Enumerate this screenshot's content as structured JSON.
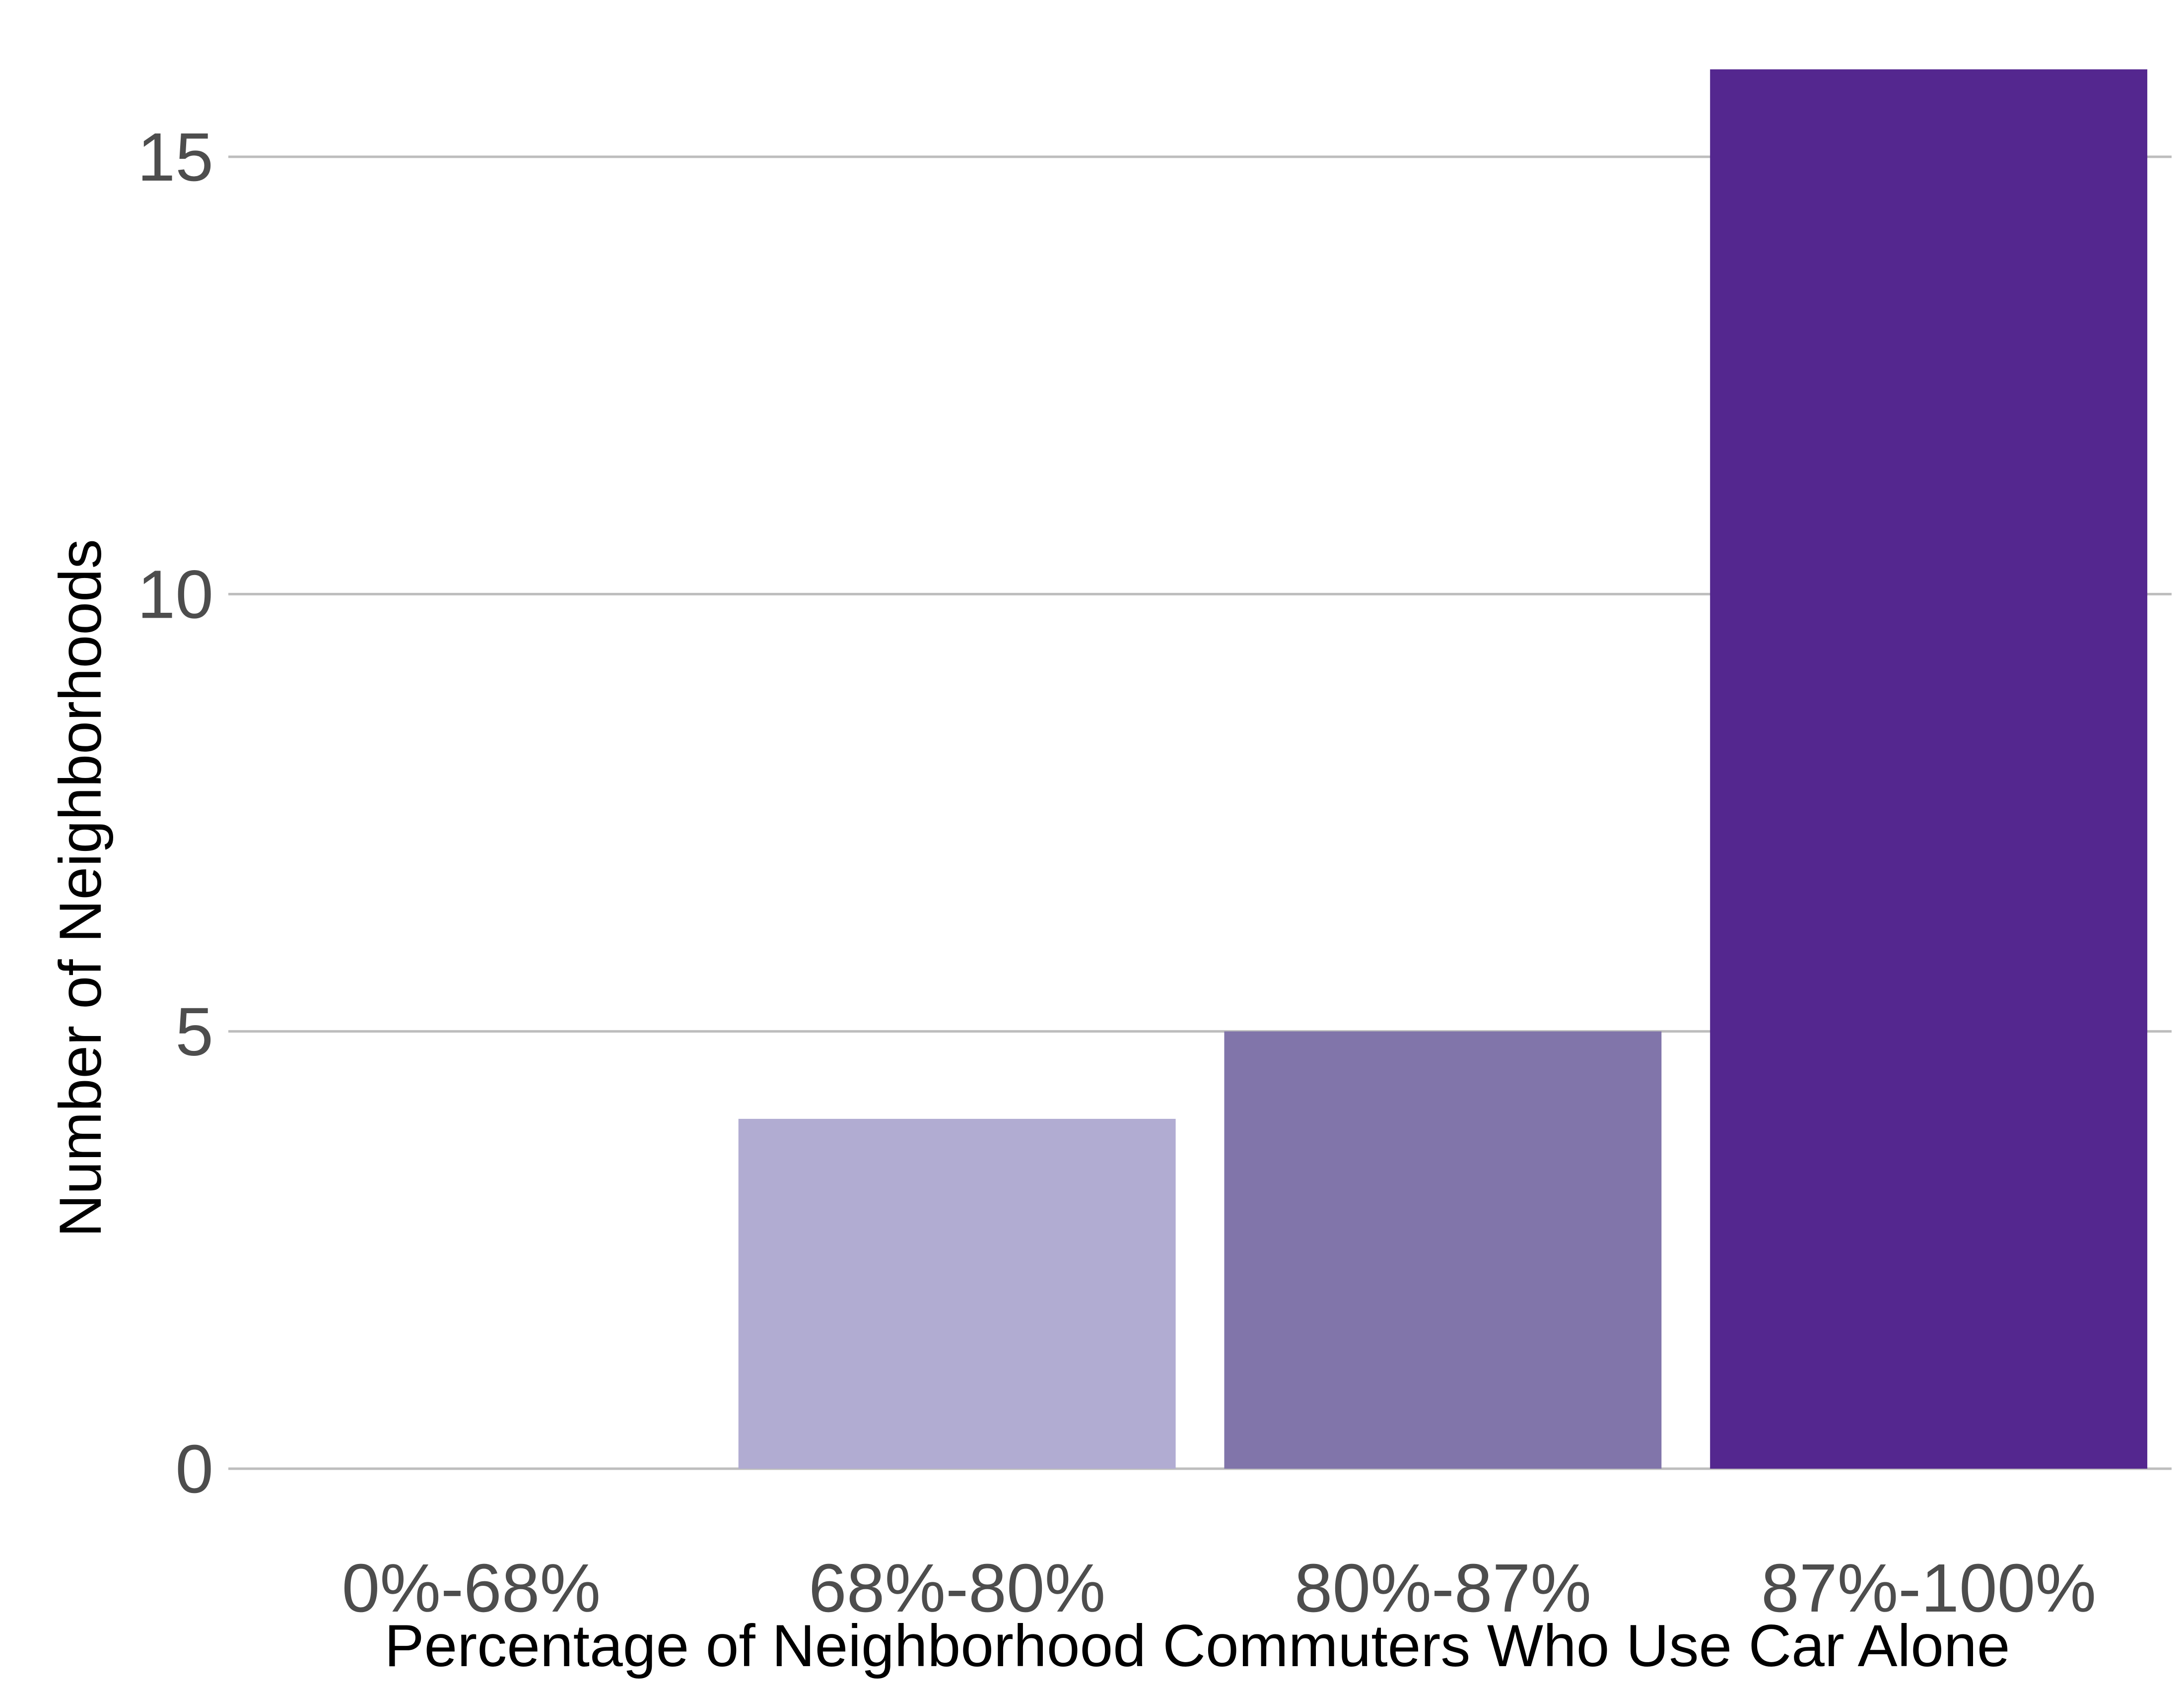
{
  "chart_data": {
    "type": "bar",
    "categories": [
      "0%-68%",
      "68%-80%",
      "80%-87%",
      "87%-100%"
    ],
    "values": [
      0,
      4,
      5,
      16
    ],
    "colors": [
      "#f2f0f7",
      "#b1acd2",
      "#8175aa",
      "#54278f"
    ],
    "xlabel": "Percentage of Neighborhood Commuters Who Use Car Alone",
    "ylabel": "Number of Neighborhoods",
    "ylim": [
      0,
      16
    ],
    "yticks": [
      0,
      5,
      10,
      15
    ],
    "ytick_labels": [
      "0",
      "5",
      "10",
      "15"
    ],
    "grid": "horizontal major gridlines",
    "legend": "none"
  }
}
